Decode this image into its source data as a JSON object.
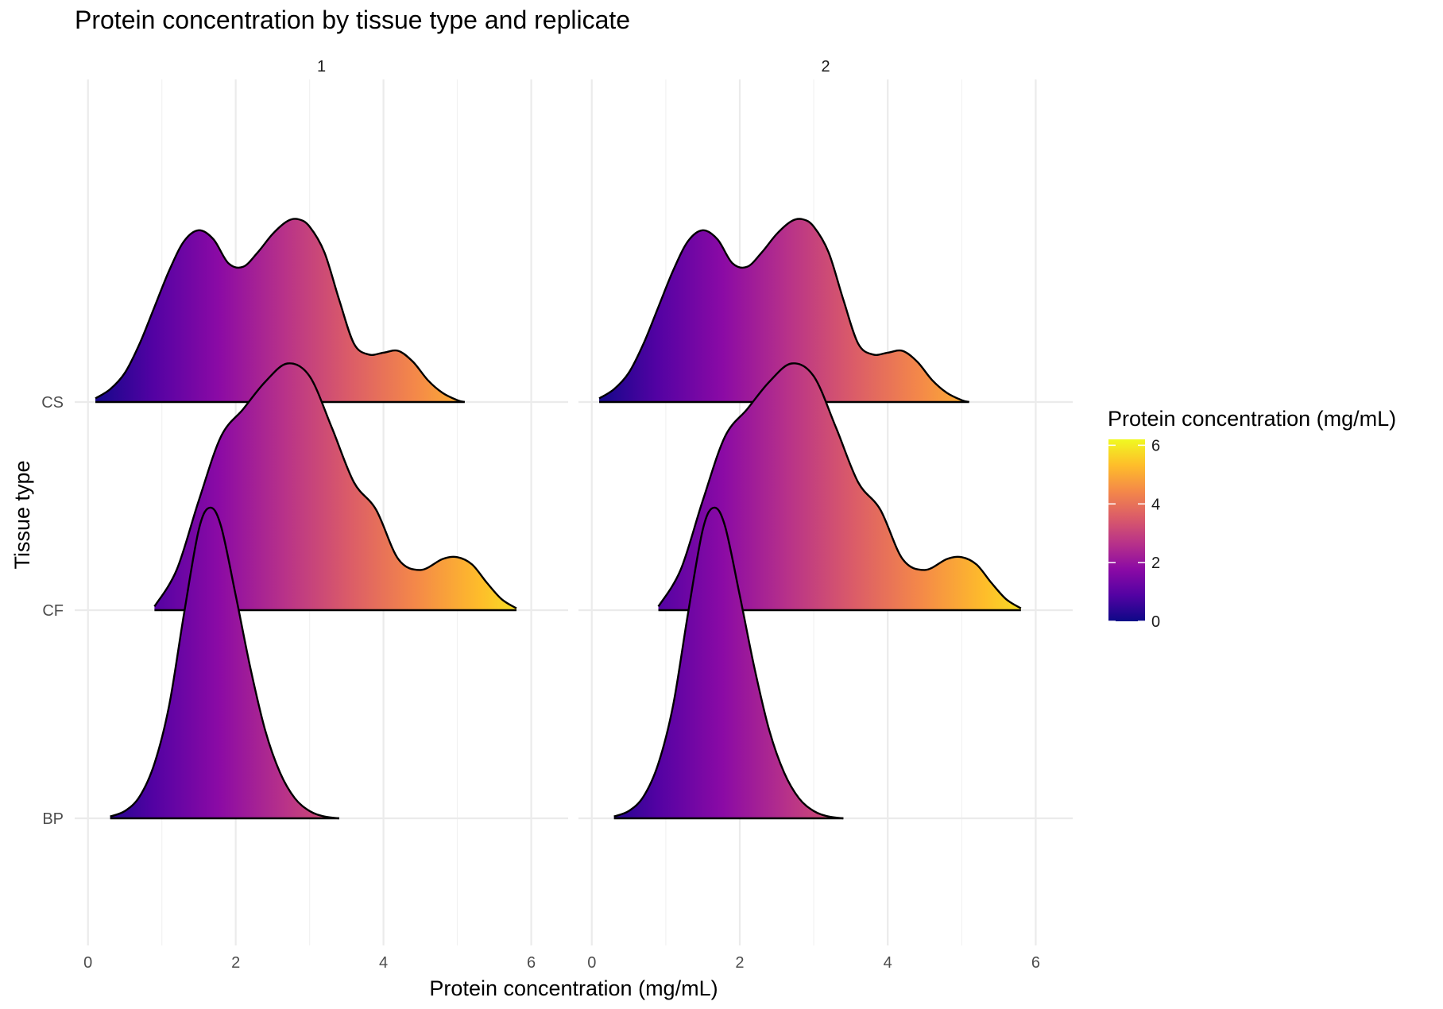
{
  "chart_data": {
    "type": "ridgeline",
    "title": "Protein concentration by tissue type and replicate",
    "xlabel": "Protein concentration (mg/mL)",
    "ylabel": "Tissue type",
    "xlim": [
      -0.18,
      6.5
    ],
    "x_ticks": [
      0,
      2,
      4,
      6
    ],
    "x_tick_labels": [
      "0",
      "2",
      "4",
      "6"
    ],
    "categories": [
      "BP",
      "CF",
      "CS"
    ],
    "facets": [
      "1",
      "2"
    ],
    "grid": true,
    "fill": {
      "mapped_to": "Protein concentration (mg/mL)",
      "palette": "plasma",
      "stops": [
        "#0d0887",
        "#5302a3",
        "#8b0aa5",
        "#b83289",
        "#db5c68",
        "#f48849",
        "#febd2a",
        "#f0f921"
      ],
      "limits": [
        0,
        6.2
      ]
    },
    "legend": {
      "title": "Protein concentration (mg/mL)",
      "position": "right",
      "ticks": [
        0,
        2,
        4,
        6
      ],
      "tick_labels": [
        "0",
        "2",
        "4",
        "6"
      ]
    },
    "ridges": [
      {
        "category": "CS",
        "x": [
          0.1,
          0.3,
          0.5,
          0.7,
          0.9,
          1.1,
          1.3,
          1.5,
          1.7,
          1.9,
          2.1,
          2.3,
          2.5,
          2.7,
          2.85,
          3.0,
          3.2,
          3.4,
          3.6,
          3.8,
          4.0,
          4.2,
          4.4,
          4.6,
          4.8,
          5.0,
          5.1
        ],
        "y": [
          0.02,
          0.07,
          0.16,
          0.32,
          0.52,
          0.72,
          0.88,
          0.94,
          0.89,
          0.76,
          0.74,
          0.82,
          0.92,
          0.99,
          1.0,
          0.96,
          0.82,
          0.56,
          0.32,
          0.26,
          0.27,
          0.28,
          0.22,
          0.12,
          0.05,
          0.01,
          0.0
        ]
      },
      {
        "category": "CF",
        "x": [
          0.9,
          1.2,
          1.5,
          1.8,
          2.1,
          2.4,
          2.7,
          3.0,
          3.3,
          3.6,
          3.9,
          4.2,
          4.5,
          4.8,
          5.0,
          5.2,
          5.4,
          5.6,
          5.8
        ],
        "y": [
          0.02,
          0.22,
          0.6,
          0.95,
          1.1,
          1.25,
          1.35,
          1.28,
          1.0,
          0.7,
          0.55,
          0.28,
          0.22,
          0.28,
          0.29,
          0.25,
          0.15,
          0.06,
          0.01
        ]
      },
      {
        "category": "BP",
        "x": [
          0.3,
          0.5,
          0.7,
          0.9,
          1.1,
          1.3,
          1.5,
          1.65,
          1.8,
          2.0,
          2.2,
          2.4,
          2.6,
          2.8,
          3.0,
          3.2,
          3.4
        ],
        "y": [
          0.01,
          0.04,
          0.12,
          0.3,
          0.62,
          1.12,
          1.58,
          1.7,
          1.6,
          1.22,
          0.82,
          0.48,
          0.25,
          0.11,
          0.04,
          0.01,
          0.0
        ]
      }
    ]
  }
}
